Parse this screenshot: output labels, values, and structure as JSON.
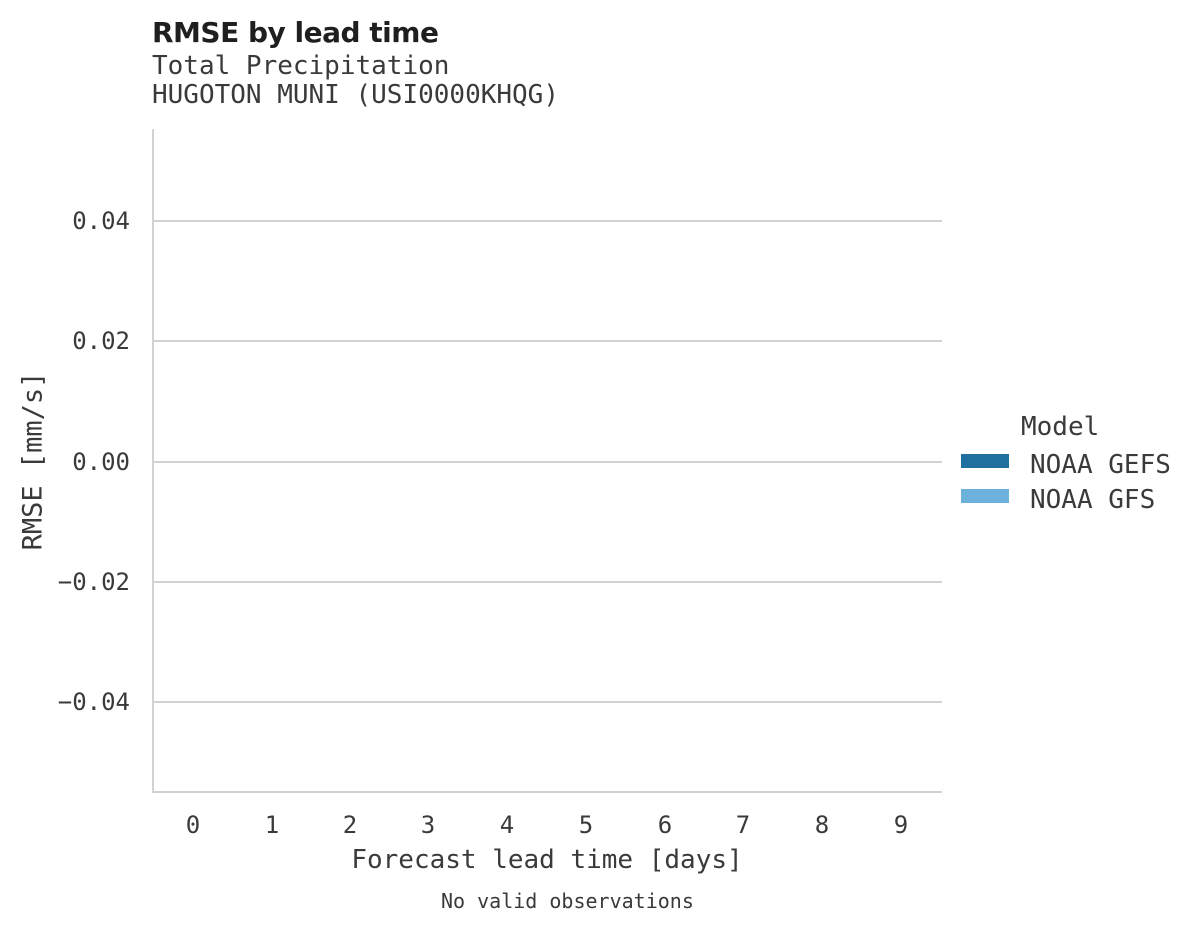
{
  "header": {
    "title": "RMSE by lead time",
    "subtitle_line1": "Total Precipitation",
    "subtitle_line2": "HUGOTON MUNI (USI0000KHQG)"
  },
  "chart_data": {
    "type": "line",
    "title": "RMSE by lead time",
    "subtitle": [
      "Total Precipitation",
      "HUGOTON MUNI (USI0000KHQG)"
    ],
    "xlabel": "Forecast lead time [days]",
    "ylabel": "RMSE [mm/s]",
    "x_ticks": [
      "0",
      "1",
      "2",
      "3",
      "4",
      "5",
      "6",
      "7",
      "8",
      "9"
    ],
    "y_ticks": [
      "0.04",
      "0.02",
      "0.00",
      "−0.02",
      "−0.04"
    ],
    "xlim": [
      -0.5,
      9.5
    ],
    "ylim": [
      -0.055,
      0.055
    ],
    "grid": "horizontal-only",
    "legend_position": "right",
    "series": [
      {
        "name": "NOAA GEFS",
        "color": "#1f6f9f",
        "x": [],
        "values": []
      },
      {
        "name": "NOAA GFS",
        "color": "#6cb0dc",
        "x": [],
        "values": []
      }
    ]
  },
  "legend": {
    "title": "Model",
    "entries": [
      {
        "label": "NOAA GEFS",
        "color": "#1f6f9f"
      },
      {
        "label": "NOAA GFS",
        "color": "#6cb0dc"
      }
    ]
  },
  "footer": {
    "caption": "No valid observations"
  },
  "colors": {
    "axis_line": "#d2d2d2",
    "gridline": "#d2d2d2",
    "text": "#3a3a3a",
    "title_text": "#1f1f1f",
    "background": "#ffffff"
  }
}
